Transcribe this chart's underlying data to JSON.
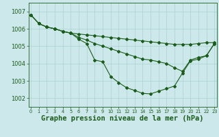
{
  "title": "Graphe pression niveau de la mer (hPa)",
  "ylim": [
    1001.5,
    1007.5
  ],
  "yticks": [
    1002,
    1003,
    1004,
    1005,
    1006,
    1007
  ],
  "bg_color": "#cce8ea",
  "grid_color": "#aad0d0",
  "line_color": "#1a5c1a",
  "line1_y": [
    1006.8,
    1006.3,
    1006.1,
    1006.0,
    1005.85,
    1005.75,
    1005.7,
    1005.65,
    1005.6,
    1005.55,
    1005.5,
    1005.45,
    1005.4,
    1005.35,
    1005.3,
    1005.25,
    1005.2,
    1005.15,
    1005.1,
    1005.1,
    1005.1,
    1005.15,
    1005.2,
    1005.2
  ],
  "line2_y": [
    1006.8,
    1006.3,
    1006.1,
    1006.0,
    1005.85,
    1005.75,
    1005.5,
    1005.35,
    1005.15,
    1005.0,
    1004.85,
    1004.7,
    1004.55,
    1004.4,
    1004.25,
    1004.2,
    1004.1,
    1004.0,
    1003.75,
    1003.55,
    1004.2,
    1004.35,
    1004.45,
    1005.15
  ],
  "line3_y": [
    1006.8,
    1006.3,
    1006.1,
    1006.0,
    1005.85,
    1005.75,
    1005.4,
    1005.15,
    1004.2,
    1004.1,
    1003.25,
    1002.9,
    1002.6,
    1002.45,
    1002.28,
    1002.25,
    1002.4,
    1002.55,
    1002.7,
    1003.45,
    1004.15,
    1004.25,
    1004.45,
    1005.15
  ],
  "title_fontsize": 7.5,
  "tick_fontsize": 6.0
}
